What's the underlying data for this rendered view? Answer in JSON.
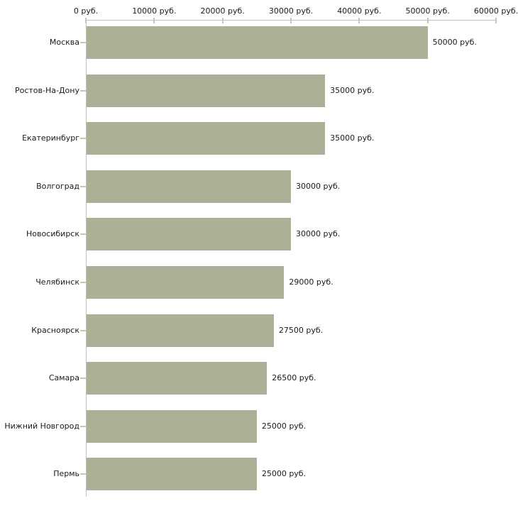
{
  "chart_data": {
    "type": "bar",
    "orientation": "horizontal",
    "title": "",
    "xlabel": "",
    "ylabel": "",
    "categories": [
      "Москва",
      "Ростов-На-Дону",
      "Екатеринбург",
      "Волгоград",
      "Новосибирск",
      "Челябинск",
      "Красноярск",
      "Самара",
      "Нижний Новгород",
      "Пермь"
    ],
    "values": [
      50000,
      35000,
      35000,
      30000,
      30000,
      29000,
      27500,
      26500,
      25000,
      25000
    ],
    "value_labels": [
      "50000 руб.",
      "35000 руб.",
      "35000 руб.",
      "30000 руб.",
      "30000 руб.",
      "29000 руб.",
      "27500 руб.",
      "26500 руб.",
      "25000 руб.",
      "25000 руб."
    ],
    "x_axis": {
      "position": "top",
      "range": [
        0,
        60000
      ],
      "ticks": [
        0,
        10000,
        20000,
        30000,
        40000,
        50000,
        60000
      ],
      "tick_labels": [
        "0 руб.",
        "10000 руб.",
        "20000 руб.",
        "30000 руб.",
        "40000 руб.",
        "50000 руб.",
        "60000 руб."
      ]
    },
    "legend": "none",
    "grid": false,
    "colors": {
      "bar": "#abb096",
      "axis_line": "#c0c0c0",
      "tick_mark": "#c9cba8",
      "text": "#1a1a1a",
      "background": "#ffffff"
    }
  }
}
